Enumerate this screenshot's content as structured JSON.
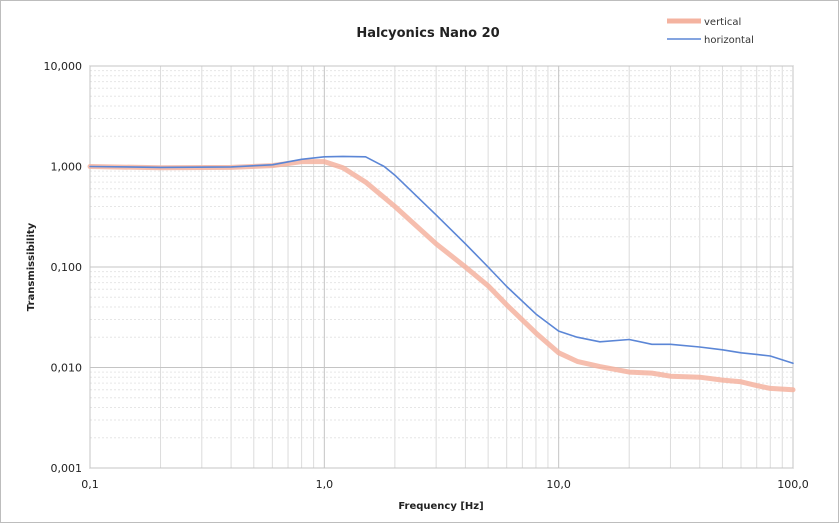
{
  "chart_data": {
    "type": "line",
    "title": "Halcyonics Nano 20",
    "xlabel": "Frequency [Hz]",
    "ylabel": "Transmissibility",
    "x_scale": "log",
    "y_scale": "log",
    "xlim": [
      0.1,
      100
    ],
    "ylim": [
      0.001,
      10
    ],
    "x_ticks": [
      {
        "value": 0.1,
        "label": "0,1"
      },
      {
        "value": 1,
        "label": "1,0"
      },
      {
        "value": 10,
        "label": "10,0"
      },
      {
        "value": 100,
        "label": "100,0"
      }
    ],
    "y_ticks": [
      {
        "value": 10,
        "label": "10,000"
      },
      {
        "value": 1,
        "label": "1,000"
      },
      {
        "value": 0.1,
        "label": "0,100"
      },
      {
        "value": 0.01,
        "label": "0,010"
      },
      {
        "value": 0.001,
        "label": "0,001"
      }
    ],
    "grid": true,
    "legend_position": "top-right",
    "series": [
      {
        "name": "vertical",
        "color": "#f4b3a0",
        "x": [
          0.1,
          0.2,
          0.4,
          0.6,
          0.8,
          1.0,
          1.2,
          1.5,
          2.0,
          3.0,
          4.0,
          5.0,
          6.0,
          8.0,
          10.0,
          12.0,
          15.0,
          20.0,
          25.0,
          30.0,
          40.0,
          50.0,
          60.0,
          70.0,
          80.0,
          100.0
        ],
        "y": [
          1.0,
          0.97,
          0.98,
          1.02,
          1.12,
          1.12,
          0.97,
          0.7,
          0.4,
          0.17,
          0.1,
          0.065,
          0.042,
          0.022,
          0.014,
          0.0115,
          0.0102,
          0.009,
          0.0088,
          0.0082,
          0.008,
          0.0075,
          0.0072,
          0.0066,
          0.0062,
          0.006
        ]
      },
      {
        "name": "horizontal",
        "color": "#5b86d6",
        "x": [
          0.1,
          0.2,
          0.4,
          0.6,
          0.8,
          1.0,
          1.2,
          1.5,
          1.8,
          2.0,
          3.0,
          4.0,
          5.0,
          6.0,
          8.0,
          10.0,
          12.0,
          15.0,
          20.0,
          25.0,
          30.0,
          40.0,
          50.0,
          60.0,
          70.0,
          80.0,
          100.0
        ],
        "y": [
          1.0,
          0.98,
          0.99,
          1.04,
          1.18,
          1.25,
          1.26,
          1.25,
          1.0,
          0.82,
          0.33,
          0.17,
          0.1,
          0.064,
          0.034,
          0.023,
          0.02,
          0.018,
          0.019,
          0.017,
          0.017,
          0.016,
          0.015,
          0.014,
          0.0135,
          0.013,
          0.011
        ]
      }
    ]
  }
}
